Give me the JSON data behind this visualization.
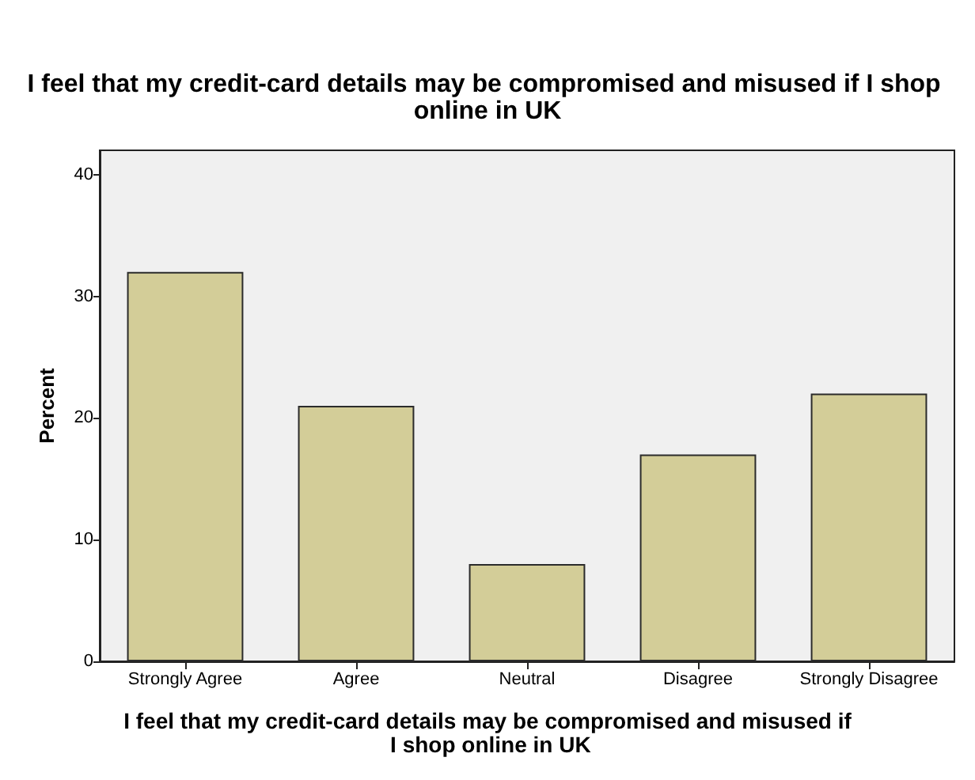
{
  "chart_data": {
    "type": "bar",
    "title": "I feel that my credit-card details may be compromised and misused if I shop online in UK",
    "xlabel": "I feel that my credit-card details may be compromised and misused if I shop online in UK",
    "ylabel": "Percent",
    "categories": [
      "Strongly Agree",
      "Agree",
      "Neutral",
      "Disagree",
      "Strongly Disagree"
    ],
    "values": [
      32,
      21,
      8,
      17,
      22
    ],
    "color": "#d3cd98",
    "ylim": [
      0,
      42
    ],
    "yticks": [
      0,
      10,
      20,
      30,
      40
    ]
  }
}
